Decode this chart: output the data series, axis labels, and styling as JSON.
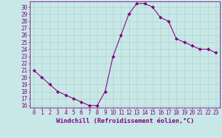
{
  "x": [
    0,
    1,
    2,
    3,
    4,
    5,
    6,
    7,
    8,
    9,
    10,
    11,
    12,
    13,
    14,
    15,
    16,
    17,
    18,
    19,
    20,
    21,
    22,
    23
  ],
  "y": [
    21,
    20,
    19,
    18,
    17.5,
    17,
    16.5,
    16,
    16,
    18,
    23,
    26,
    29,
    30.5,
    30.5,
    30,
    28.5,
    28,
    25.5,
    25,
    24.5,
    24,
    24,
    23.5
  ],
  "line_color": "#800080",
  "marker_color": "#800080",
  "bg_color": "#c8e8e8",
  "grid_color": "#a8cccc",
  "xlabel": "Windchill (Refroidissement éolien,°C)",
  "xlim_min": -0.5,
  "xlim_max": 23.5,
  "ylim_min": 15.7,
  "ylim_max": 30.8,
  "xticks": [
    0,
    1,
    2,
    3,
    4,
    5,
    6,
    7,
    8,
    9,
    10,
    11,
    12,
    13,
    14,
    15,
    16,
    17,
    18,
    19,
    20,
    21,
    22,
    23
  ],
  "yticks": [
    16,
    17,
    18,
    19,
    20,
    21,
    22,
    23,
    24,
    25,
    26,
    27,
    28,
    29,
    30
  ],
  "tick_color": "#800080",
  "axis_color": "#800080",
  "font_size": 5.5,
  "xlabel_fontsize": 6.5,
  "linewidth": 0.8,
  "markersize": 2.2
}
